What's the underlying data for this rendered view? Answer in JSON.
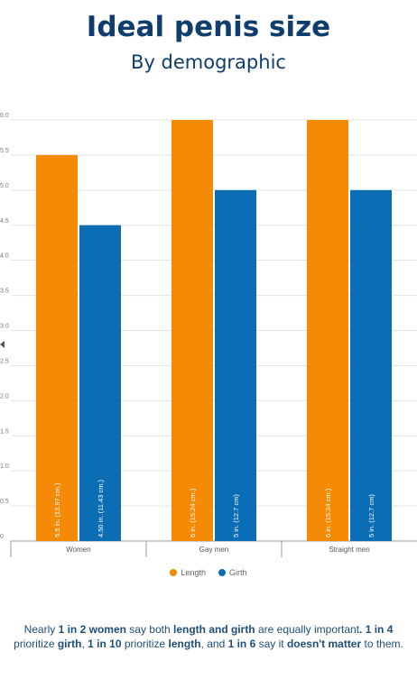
{
  "title": "Ideal penis size",
  "subtitle": "By demographic",
  "colors": {
    "Length": "#f58a07",
    "Girth": "#0b6eb4"
  },
  "chart_data": {
    "type": "bar",
    "categories": [
      "Women",
      "Gay men",
      "Straight men"
    ],
    "series": [
      {
        "name": "Length",
        "values": [
          5.5,
          6.0,
          6.0
        ],
        "labels": [
          "5.5 in. (13.97 cm.)",
          "6 in. (15.24 cm.)",
          "6 in. (15.24 cm.)"
        ]
      },
      {
        "name": "Girth",
        "values": [
          4.5,
          5.0,
          5.0
        ],
        "labels": [
          "4.50 in. (11.43 cm.)",
          "5 in. (12.7 cm)",
          "5 in. (12.7 cm)"
        ]
      }
    ],
    "ylim": [
      0,
      6
    ],
    "yticks": [
      "0",
      "0.5",
      "1.0",
      "1.5",
      "2.0",
      "2.5",
      "3.0",
      "3.5",
      "4.0",
      "4.5",
      "5.0",
      "5.5",
      "6.0"
    ],
    "grid": true,
    "legend_position": "bottom"
  },
  "footnote": [
    {
      "t": "Nearly ",
      "b": false
    },
    {
      "t": "1 in 2 women",
      "b": true
    },
    {
      "t": " say both ",
      "b": false
    },
    {
      "t": "length and girth",
      "b": true
    },
    {
      "t": " are equally important",
      "b": false
    },
    {
      "t": ". 1 in 4",
      "b": true
    },
    {
      "t": " prioritize ",
      "b": false
    },
    {
      "t": "girth",
      "b": true
    },
    {
      "t": ", ",
      "b": false
    },
    {
      "t": "1 in 10",
      "b": true
    },
    {
      "t": " prioritize ",
      "b": false
    },
    {
      "t": "length",
      "b": true
    },
    {
      "t": ", and ",
      "b": false
    },
    {
      "t": "1 in 6",
      "b": true
    },
    {
      "t": " say it ",
      "b": false
    },
    {
      "t": "doesn't matter",
      "b": true
    },
    {
      "t": " to them.",
      "b": false
    }
  ]
}
